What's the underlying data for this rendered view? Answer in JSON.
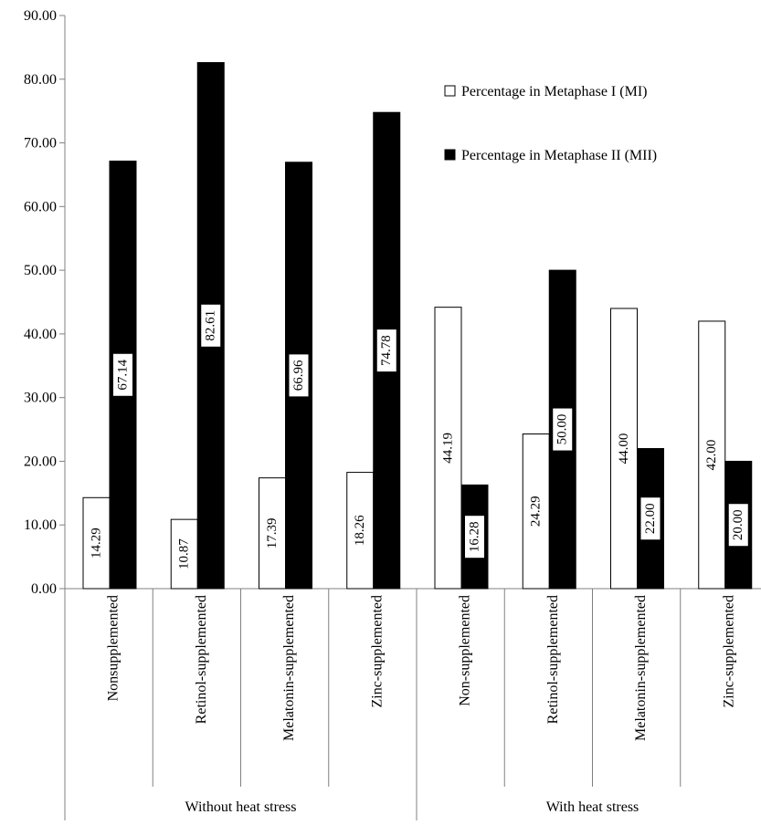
{
  "chart_data": {
    "type": "bar",
    "title": "",
    "xlabel": "",
    "ylabel": "",
    "ylim": [
      0,
      90
    ],
    "y_ticks": [
      "0.00",
      "10.00",
      "20.00",
      "30.00",
      "40.00",
      "50.00",
      "60.00",
      "70.00",
      "80.00",
      "90.00"
    ],
    "groups": [
      {
        "label": "Without heat stress",
        "categories": [
          "Nonsupplemented",
          "Retinol-supplemented",
          "Melatonin-supplemented",
          "Zinc-supplemented"
        ]
      },
      {
        "label": "With heat stress",
        "categories": [
          "Non-supplemented",
          "Retinol-supplemented",
          "Melatonin-supplemented",
          "Zinc-supplemented"
        ]
      }
    ],
    "categories": [
      "Nonsupplemented",
      "Retinol-supplemented",
      "Melatonin-supplemented",
      "Zinc-supplemented",
      "Non-supplemented",
      "Retinol-supplemented",
      "Melatonin-supplemented",
      "Zinc-supplemented"
    ],
    "series": [
      {
        "name": "Percentage in Metaphase I (MI)",
        "color": "#ffffff",
        "values": [
          14.29,
          10.87,
          17.39,
          18.26,
          44.19,
          24.29,
          44.0,
          42.0
        ],
        "labels": [
          "14.29",
          "10.87",
          "17.39",
          "18.26",
          "44.19",
          "24.29",
          "44.00",
          "42.00"
        ]
      },
      {
        "name": "Percentage in Metaphase II (MII)",
        "color": "#000000",
        "values": [
          67.14,
          82.61,
          66.96,
          74.78,
          16.28,
          50.0,
          22.0,
          20.0
        ],
        "labels": [
          "67.14",
          "82.61",
          "66.96",
          "74.78",
          "16.28",
          "50.00",
          "22.00",
          "20.00"
        ]
      }
    ],
    "legend_position": "top-right",
    "grid": false
  }
}
